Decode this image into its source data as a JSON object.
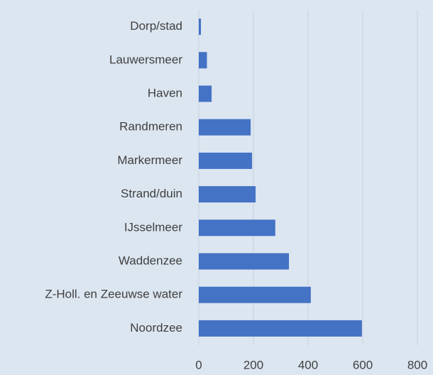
{
  "chart_data": {
    "type": "barh",
    "categories": [
      "Dorp/stad",
      "Lauwersmeer",
      "Haven",
      "Randmeren",
      "Markermeer",
      "Strand/duin",
      "IJsselmeer",
      "Waddenzee",
      "Z-Holl. en Zeeuwse water",
      "Noordzee"
    ],
    "values": [
      8,
      30,
      47,
      190,
      195,
      208,
      280,
      330,
      410,
      597
    ],
    "color": "#4472c4",
    "xlim": [
      0,
      800
    ],
    "xticks": [
      0,
      200,
      400,
      600,
      800
    ],
    "grid": true
  }
}
